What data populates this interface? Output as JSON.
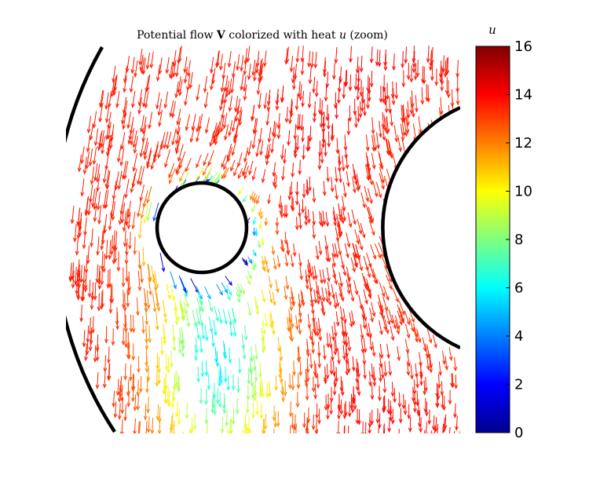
{
  "chart_data": {
    "type": "quiver",
    "title": "Potential flow V colorized with heat u (zoom)",
    "title_parts": {
      "prefix": "Potential flow ",
      "vector_symbol": "V",
      "middle": " colorized with heat ",
      "heat_symbol": "u",
      "suffix": " (zoom)"
    },
    "colorbar": {
      "label": "u",
      "colormap": "jet",
      "range": [
        0,
        16
      ],
      "ticks": [
        "0",
        "2",
        "4",
        "6",
        "8",
        "10",
        "12",
        "14",
        "16"
      ]
    },
    "colors": {
      "jet": [
        "#00008f",
        "#0000ff",
        "#00ffff",
        "#ffff00",
        "#ff0000",
        "#800000"
      ],
      "boundary": "#000000"
    }
  }
}
